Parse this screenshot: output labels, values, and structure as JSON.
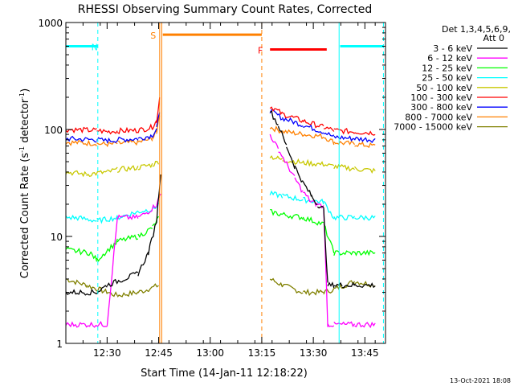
{
  "chart_data": {
    "type": "line",
    "title": "RHESSI Observing Summary Count Rates, Corrected",
    "xlabel": "Start Time (14-Jan-11 12:18:22)",
    "ylabel_main": "Corrected Count Rate (s",
    "ylabel_sup1": "-1",
    "ylabel_mid": " detector",
    "ylabel_sup2": "-1",
    "ylabel_end": ")",
    "y_scale": "log",
    "xlim_minutes": [
      12.3,
      13.85
    ],
    "ylim": [
      1,
      1000
    ],
    "x_ticks": [
      {
        "m": 12.5,
        "label": "12:30"
      },
      {
        "m": 12.75,
        "label": "12:45"
      },
      {
        "m": 13.0,
        "label": "13:00"
      },
      {
        "m": 13.25,
        "label": "13:15"
      },
      {
        "m": 13.5,
        "label": "13:30"
      },
      {
        "m": 13.75,
        "label": "13:45"
      }
    ],
    "y_ticks": [
      {
        "v": 1,
        "label": "1"
      },
      {
        "v": 10,
        "label": "10"
      },
      {
        "v": 100,
        "label": "100"
      },
      {
        "v": 1000,
        "label": "1000"
      }
    ],
    "legend": {
      "header_line1": "Det 1,3,4,5,6,9,",
      "header_line2": "Att 0",
      "placement": "right"
    },
    "series": [
      {
        "name": "3 - 6 keV",
        "color": "#000000",
        "x": [
          12.3,
          12.45,
          12.5,
          12.58,
          12.65,
          12.7,
          12.74,
          12.76,
          13.29,
          13.33,
          13.37,
          13.41,
          13.45,
          13.49,
          13.52,
          13.55,
          13.57,
          13.6,
          13.64,
          13.7,
          13.8
        ],
        "y": [
          3,
          3,
          3.5,
          4,
          4.5,
          7,
          14,
          40,
          150,
          110,
          70,
          45,
          32,
          24,
          20,
          18,
          3.5,
          3.5,
          3.5,
          3.5,
          3.5
        ]
      },
      {
        "name": "6 - 12 keV",
        "color": "#ff00ff",
        "x": [
          12.3,
          12.5,
          12.55,
          12.65,
          12.7,
          12.74,
          12.76,
          13.29,
          13.33,
          13.37,
          13.41,
          13.45,
          13.49,
          13.52,
          13.55,
          13.57,
          13.6,
          13.7,
          13.8
        ],
        "y": [
          1.5,
          1.5,
          15,
          15,
          17,
          20,
          25,
          90,
          65,
          48,
          35,
          26,
          21,
          20,
          19,
          1.5,
          1.5,
          1.5,
          1.5
        ]
      },
      {
        "name": "12 - 25 keV",
        "color": "#00ff00",
        "x": [
          12.3,
          12.42,
          12.45,
          12.55,
          12.65,
          12.72,
          12.75,
          13.29,
          13.35,
          13.45,
          13.55,
          13.6,
          13.7,
          13.8
        ],
        "y": [
          7.5,
          7,
          6,
          9,
          10,
          12,
          15,
          17,
          16,
          15,
          13,
          7,
          7,
          7
        ]
      },
      {
        "name": "25 - 50 keV",
        "color": "#00ffff",
        "x": [
          12.3,
          12.35,
          12.45,
          12.55,
          12.65,
          12.72,
          12.75,
          13.29,
          13.35,
          13.45,
          13.55,
          13.6,
          13.7,
          13.8
        ],
        "y": [
          15,
          15,
          14,
          15,
          17,
          18,
          20,
          25,
          24,
          22,
          21,
          15,
          15,
          15
        ]
      },
      {
        "name": "50 - 100 keV",
        "color": "#c8c800",
        "x": [
          12.3,
          12.4,
          12.5,
          12.55,
          12.65,
          12.72,
          12.75,
          13.29,
          13.35,
          13.45,
          13.55,
          13.6,
          13.7,
          13.8
        ],
        "y": [
          40,
          38,
          40,
          42,
          44,
          47,
          50,
          56,
          52,
          49,
          47,
          45,
          43,
          41
        ]
      },
      {
        "name": "100 - 300 keV",
        "color": "#ff0000",
        "x": [
          12.3,
          12.45,
          12.5,
          12.55,
          12.65,
          12.72,
          12.74,
          12.755,
          13.29,
          13.35,
          13.45,
          13.55,
          13.6,
          13.7,
          13.8
        ],
        "y": [
          100,
          98,
          95,
          97,
          98,
          105,
          120,
          200,
          165,
          140,
          120,
          105,
          98,
          95,
          93
        ]
      },
      {
        "name": "300 - 800 keV",
        "color": "#0000ff",
        "x": [
          12.3,
          12.45,
          12.5,
          12.55,
          12.65,
          12.72,
          12.74,
          12.755,
          13.29,
          13.35,
          13.45,
          13.55,
          13.6,
          13.7,
          13.8
        ],
        "y": [
          82,
          80,
          78,
          80,
          82,
          88,
          100,
          150,
          150,
          128,
          110,
          95,
          85,
          82,
          80
        ]
      },
      {
        "name": "800 - 7000 keV",
        "color": "#ff8000",
        "x": [
          12.3,
          12.45,
          12.5,
          12.55,
          12.65,
          12.72,
          12.74,
          12.755,
          13.29,
          13.35,
          13.45,
          13.55,
          13.6,
          13.7,
          13.8
        ],
        "y": [
          76,
          74,
          72,
          74,
          76,
          82,
          95,
          140,
          105,
          96,
          90,
          86,
          76,
          73,
          70
        ]
      },
      {
        "name": "7000 - 15000 keV",
        "color": "#808000",
        "x": [
          12.3,
          12.4,
          12.5,
          12.55,
          12.65,
          12.7,
          12.75,
          13.29,
          13.35,
          13.45,
          13.55,
          13.6,
          13.7,
          13.8
        ],
        "y": [
          4,
          3.5,
          3,
          2.8,
          3,
          3.2,
          3.5,
          4,
          3.5,
          3,
          3,
          3.2,
          3.8,
          3.5
        ]
      }
    ],
    "annotations": [
      {
        "type": "state_bar",
        "label": "N",
        "color": "#00ffff",
        "x1": 12.3,
        "x2": 12.455,
        "y": 600
      },
      {
        "type": "state_bar",
        "label": "",
        "color": "#00ffff",
        "x1": 13.63,
        "x2": 13.84,
        "y": 600
      },
      {
        "type": "state_bar",
        "label": "S",
        "color": "#ff8000",
        "x1": 12.77,
        "x2": 13.25,
        "y": 770
      },
      {
        "type": "state_bar",
        "label": "F",
        "color": "#ff0000",
        "x1": 13.29,
        "x2": 13.565,
        "y": 560
      }
    ],
    "vlines": [
      {
        "x": 12.455,
        "color": "#00ffff",
        "style": "dash"
      },
      {
        "x": 12.755,
        "color": "#ff8000",
        "style": "solid"
      },
      {
        "x": 12.765,
        "color": "#ff8000",
        "style": "solid"
      },
      {
        "x": 13.25,
        "color": "#ff8000",
        "style": "dash"
      },
      {
        "x": 13.625,
        "color": "#00ffff",
        "style": "solid"
      },
      {
        "x": 13.84,
        "color": "#00ffff",
        "style": "dash"
      }
    ]
  },
  "footer": {
    "timestamp": "13-Oct-2021 18:08"
  }
}
